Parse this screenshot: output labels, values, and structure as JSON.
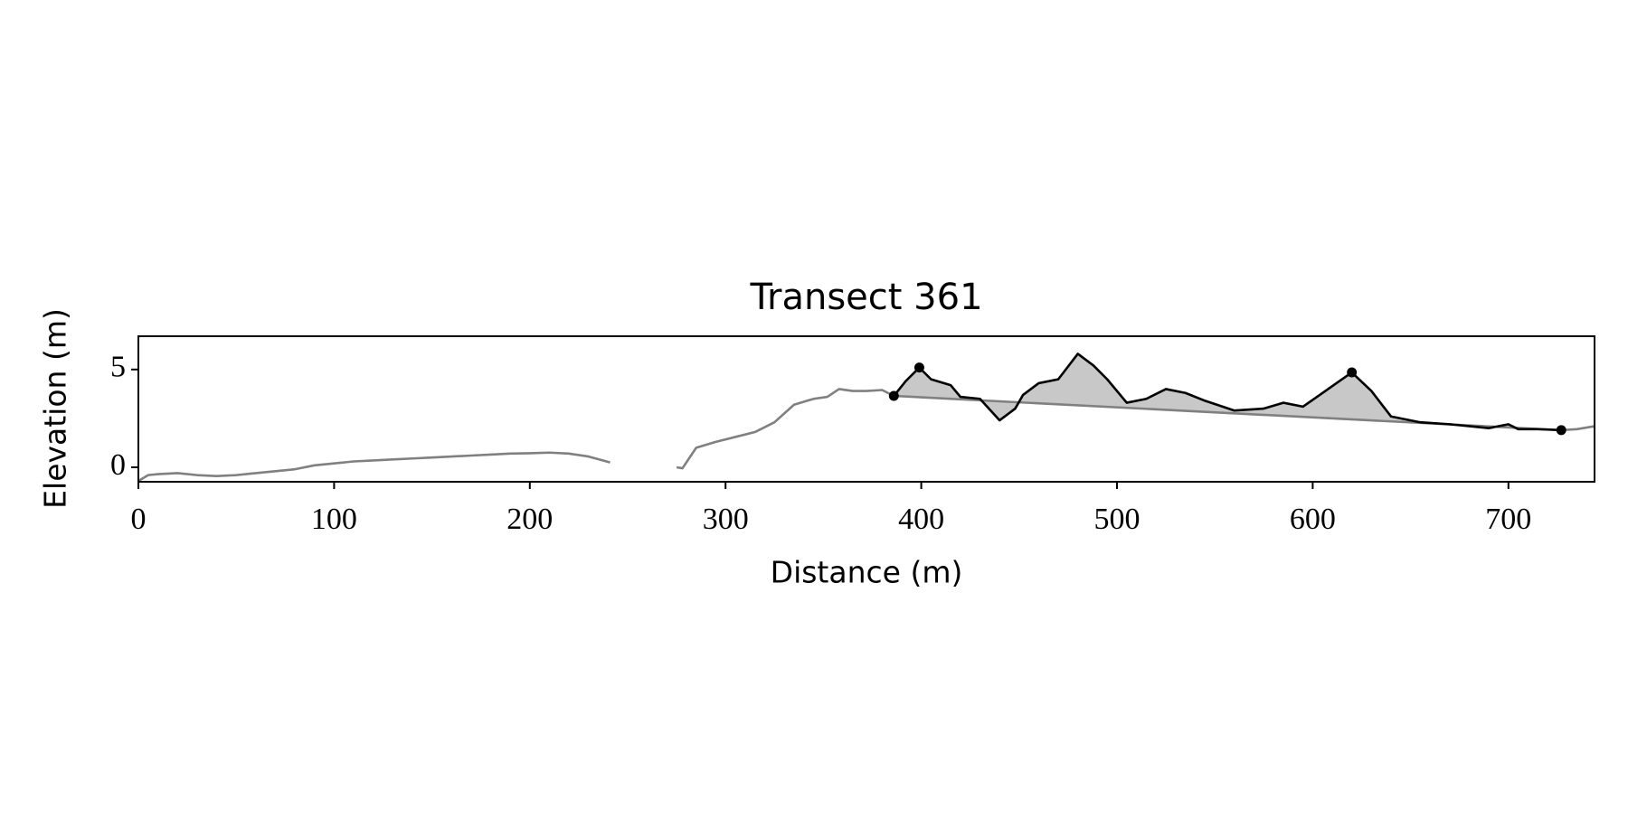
{
  "chart_data": {
    "type": "line",
    "title": "Transect 361",
    "x_label": "Distance (m)",
    "y_label": "Elevation (m)",
    "xlim": [
      0,
      744
    ],
    "ylim": [
      -0.74,
      6.7
    ],
    "xticks": [
      0,
      100,
      200,
      300,
      400,
      500,
      600,
      700
    ],
    "yticks": [
      0,
      5
    ],
    "series": [
      {
        "color": "#808080",
        "x": [
          0,
          5,
          10,
          20,
          30,
          40,
          50,
          60,
          70,
          80,
          90,
          100,
          110,
          120,
          130,
          140,
          150,
          160,
          170,
          180,
          190,
          200,
          210,
          220,
          230,
          241,
          258,
          275,
          278,
          285,
          295,
          305,
          315,
          325,
          335,
          345,
          352,
          358,
          365,
          372,
          380,
          386,
          727,
          735,
          744
        ],
        "y": [
          -0.7,
          -0.4,
          -0.35,
          -0.3,
          -0.4,
          -0.45,
          -0.4,
          -0.3,
          -0.2,
          -0.1,
          0.1,
          0.2,
          0.3,
          0.35,
          0.4,
          0.45,
          0.5,
          0.55,
          0.6,
          0.65,
          0.7,
          0.72,
          0.75,
          0.7,
          0.55,
          0.25,
          null,
          0,
          -0.05,
          1,
          1.3,
          1.55,
          1.8,
          2.3,
          3.2,
          3.5,
          3.6,
          4.0,
          3.9,
          3.9,
          3.95,
          3.65,
          1.9,
          1.95,
          2.1
        ]
      },
      {
        "color": "#000000",
        "fill_color": "#c8c8c8",
        "x": [
          386,
          392,
          399,
          405,
          415,
          420,
          430,
          440,
          448,
          452,
          460,
          470,
          480,
          488,
          495,
          505,
          515,
          525,
          535,
          545,
          560,
          575,
          585,
          595,
          605,
          615,
          620,
          630,
          640,
          655,
          670,
          690,
          700,
          705,
          715,
          727
        ],
        "y": [
          3.65,
          4.4,
          5.1,
          4.5,
          4.2,
          3.6,
          3.5,
          2.4,
          3.0,
          3.7,
          4.3,
          4.5,
          5.8,
          5.2,
          4.5,
          3.3,
          3.5,
          4.0,
          3.8,
          3.4,
          2.9,
          3.0,
          3.3,
          3.1,
          3.8,
          4.5,
          4.85,
          3.9,
          2.6,
          2.3,
          2.2,
          2.0,
          2.2,
          1.95,
          1.95,
          1.9
        ]
      }
    ],
    "markers": {
      "color": "#000000",
      "x": [
        386,
        399,
        620,
        727
      ],
      "y": [
        3.65,
        5.1,
        4.85,
        1.9
      ]
    }
  }
}
